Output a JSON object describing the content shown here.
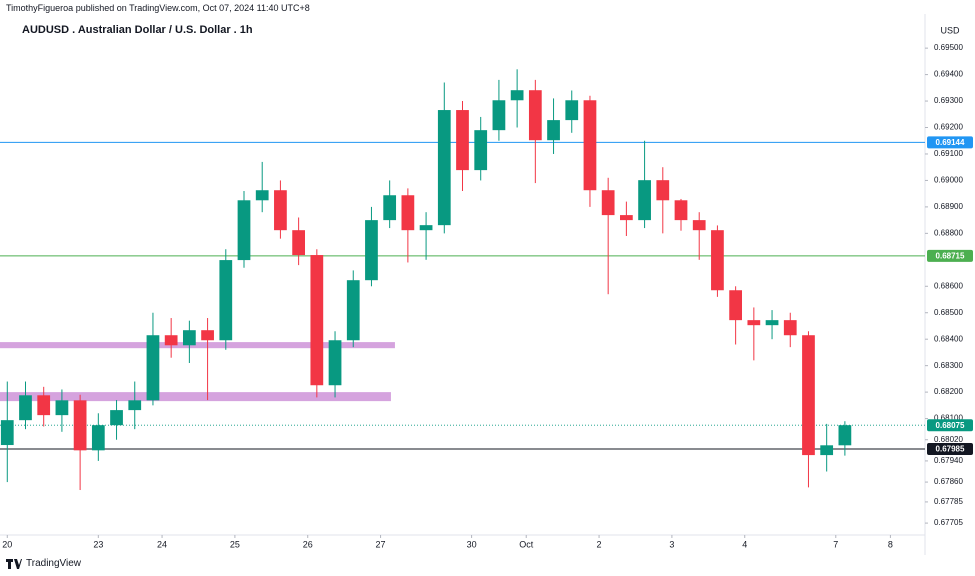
{
  "header": {
    "published": "TimothyFigueroa published on TradingView.com, Oct 07, 2024 11:40 UTC+8"
  },
  "footer": {
    "brand": "TradingView"
  },
  "chart_data": {
    "type": "candlestick",
    "title": "AUDUSD . Australian Dollar / U.S. Dollar . 1h",
    "y_unit": "USD",
    "up_color": "#089981",
    "down_color": "#f23645",
    "open": [
      0.68,
      0.68094,
      0.68188,
      0.68113,
      0.68169,
      0.6798,
      0.68075,
      0.68132,
      0.68169,
      0.68415,
      0.68377,
      0.68434,
      0.68396,
      0.68699,
      0.68925,
      0.68963,
      0.68812,
      0.68718,
      0.68226,
      0.68396,
      0.68623,
      0.6885,
      0.68944,
      0.68812,
      0.68831,
      0.69266,
      0.69039,
      0.6919,
      0.69303,
      0.69341,
      0.69152,
      0.69228,
      0.69303,
      0.68963,
      0.68869,
      0.6885,
      0.69001,
      0.68925,
      0.6885,
      0.68812,
      0.68585,
      0.68472,
      0.68453,
      0.68472,
      0.68415,
      0.67962,
      0.67999
    ],
    "high": [
      0.6824,
      0.6824,
      0.6822,
      0.6821,
      0.6819,
      0.6812,
      0.6817,
      0.6824,
      0.685,
      0.6848,
      0.6847,
      0.6848,
      0.6874,
      0.6896,
      0.6907,
      0.69,
      0.6886,
      0.6874,
      0.6843,
      0.6866,
      0.689,
      0.69,
      0.6897,
      0.6888,
      0.6937,
      0.693,
      0.6924,
      0.6938,
      0.6942,
      0.6938,
      0.6931,
      0.6934,
      0.6932,
      0.6901,
      0.6892,
      0.6915,
      0.6905,
      0.6893,
      0.6888,
      0.6883,
      0.686,
      0.6852,
      0.6851,
      0.685,
      0.6843,
      0.6808,
      0.6809
    ],
    "low": [
      0.6786,
      0.6806,
      0.6807,
      0.6805,
      0.6783,
      0.6794,
      0.6802,
      0.6806,
      0.6815,
      0.6833,
      0.6831,
      0.6817,
      0.6836,
      0.6867,
      0.6888,
      0.6878,
      0.6868,
      0.6818,
      0.6818,
      0.6837,
      0.686,
      0.6882,
      0.6869,
      0.687,
      0.688,
      0.6896,
      0.69,
      0.6915,
      0.692,
      0.6899,
      0.691,
      0.6918,
      0.689,
      0.6857,
      0.6879,
      0.6882,
      0.688,
      0.6881,
      0.687,
      0.6856,
      0.6838,
      0.6832,
      0.684,
      0.6837,
      0.6784,
      0.679,
      0.6796
    ],
    "close": [
      0.68094,
      0.68188,
      0.68113,
      0.68169,
      0.6798,
      0.68075,
      0.68132,
      0.68169,
      0.68415,
      0.68377,
      0.68434,
      0.68396,
      0.68699,
      0.68925,
      0.68963,
      0.68812,
      0.68718,
      0.68226,
      0.68396,
      0.68623,
      0.6885,
      0.68944,
      0.68812,
      0.68831,
      0.69266,
      0.69039,
      0.6919,
      0.69303,
      0.69341,
      0.69152,
      0.69228,
      0.69303,
      0.68963,
      0.68869,
      0.6885,
      0.69001,
      0.68925,
      0.6885,
      0.68812,
      0.68585,
      0.68472,
      0.68453,
      0.68472,
      0.68415,
      0.67962,
      0.67999,
      0.68075
    ],
    "xlim": [
      -0.4,
      50.4
    ],
    "xticks": [
      {
        "value": 0,
        "label": "20"
      },
      {
        "value": 5,
        "label": "23"
      },
      {
        "value": 8.5,
        "label": "24"
      },
      {
        "value": 12.5,
        "label": "25"
      },
      {
        "value": 16.5,
        "label": "26"
      },
      {
        "value": 20.5,
        "label": "27"
      },
      {
        "value": 25.5,
        "label": "30"
      },
      {
        "value": 28.5,
        "label": "Oct"
      },
      {
        "value": 32.5,
        "label": "2"
      },
      {
        "value": 36.5,
        "label": "3"
      },
      {
        "value": 40.5,
        "label": "4"
      },
      {
        "value": 45.5,
        "label": "7"
      },
      {
        "value": 48.5,
        "label": "8"
      }
    ],
    "ylim": [
      0.6766,
      0.69629
    ],
    "yticks": [
      {
        "value": 0.695,
        "label": "0.69500"
      },
      {
        "value": 0.694,
        "label": "0.69400"
      },
      {
        "value": 0.693,
        "label": "0.69300"
      },
      {
        "value": 0.692,
        "label": "0.69200"
      },
      {
        "value": 0.691,
        "label": "0.69100"
      },
      {
        "value": 0.69,
        "label": "0.69000"
      },
      {
        "value": 0.689,
        "label": "0.68900"
      },
      {
        "value": 0.688,
        "label": "0.68800"
      },
      {
        "value": 0.686,
        "label": "0.68600"
      },
      {
        "value": 0.685,
        "label": "0.68500"
      },
      {
        "value": 0.684,
        "label": "0.68400"
      },
      {
        "value": 0.683,
        "label": "0.68300"
      },
      {
        "value": 0.682,
        "label": "0.68200"
      },
      {
        "value": 0.681,
        "label": "0.68100"
      },
      {
        "value": 0.6802,
        "label": "0.68020"
      },
      {
        "value": 0.6794,
        "label": "0.67940"
      },
      {
        "value": 0.6786,
        "label": "0.67860"
      },
      {
        "value": 0.67785,
        "label": "0.67785"
      },
      {
        "value": 0.67705,
        "label": "0.67705"
      }
    ],
    "grid": false,
    "zones": [
      {
        "from": 0.68366,
        "to": 0.68389,
        "x_from": -0.4,
        "x_to": 21.29,
        "color": "#ce93d8"
      },
      {
        "from": 0.68166,
        "to": 0.682,
        "x_from": -0.4,
        "x_to": 21.07,
        "color": "#ce93d8"
      }
    ],
    "levels": [
      {
        "value": 0.69144,
        "color": "#2196f3",
        "style": "solid"
      },
      {
        "value": 0.68715,
        "color": "#4caf50",
        "style": "solid"
      },
      {
        "value": 0.68075,
        "color": "#089981",
        "style": "dotted"
      },
      {
        "value": 0.67985,
        "color": "#131722",
        "style": "solid"
      }
    ]
  }
}
